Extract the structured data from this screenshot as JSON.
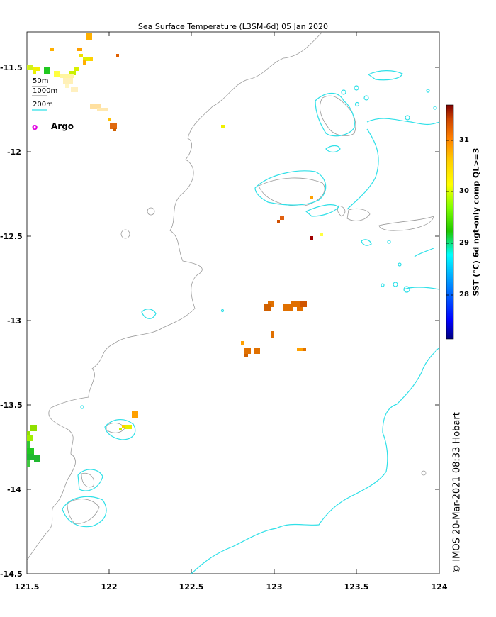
{
  "title": "Sea Surface Temperature (L3SM-6d) 05 Jan 2020",
  "axes": {
    "y_ticks": [
      "-11.5",
      "-12",
      "-12.5",
      "-13",
      "-13.5",
      "-14",
      "-14.5"
    ],
    "x_ticks": [
      "121.5",
      "122",
      "122.5",
      "123",
      "123.5",
      "124"
    ]
  },
  "legend": {
    "line_50m": "50m",
    "line_1000m": "1000m",
    "line_200m": "200m",
    "argo_symbol": "o",
    "argo_label": "Argo"
  },
  "colorbar": {
    "label": "SST (°C) 6d ngt-only comp QL>=3",
    "ticks": [
      "31",
      "30",
      "29",
      "28"
    ],
    "range": [
      27.0,
      31.7
    ],
    "colors": [
      "#00007f",
      "#0000ff",
      "#007fff",
      "#00ffff",
      "#1ec800",
      "#7fff00",
      "#ffff00",
      "#ffd000",
      "#ff7f00",
      "#cc4400",
      "#7f0000"
    ]
  },
  "credit": "© IMOS 20-Mar-2021 08:33 Hobart",
  "colors": {
    "coast_200m": "#2fe0e8",
    "land_outline": "#9a9a9a"
  }
}
